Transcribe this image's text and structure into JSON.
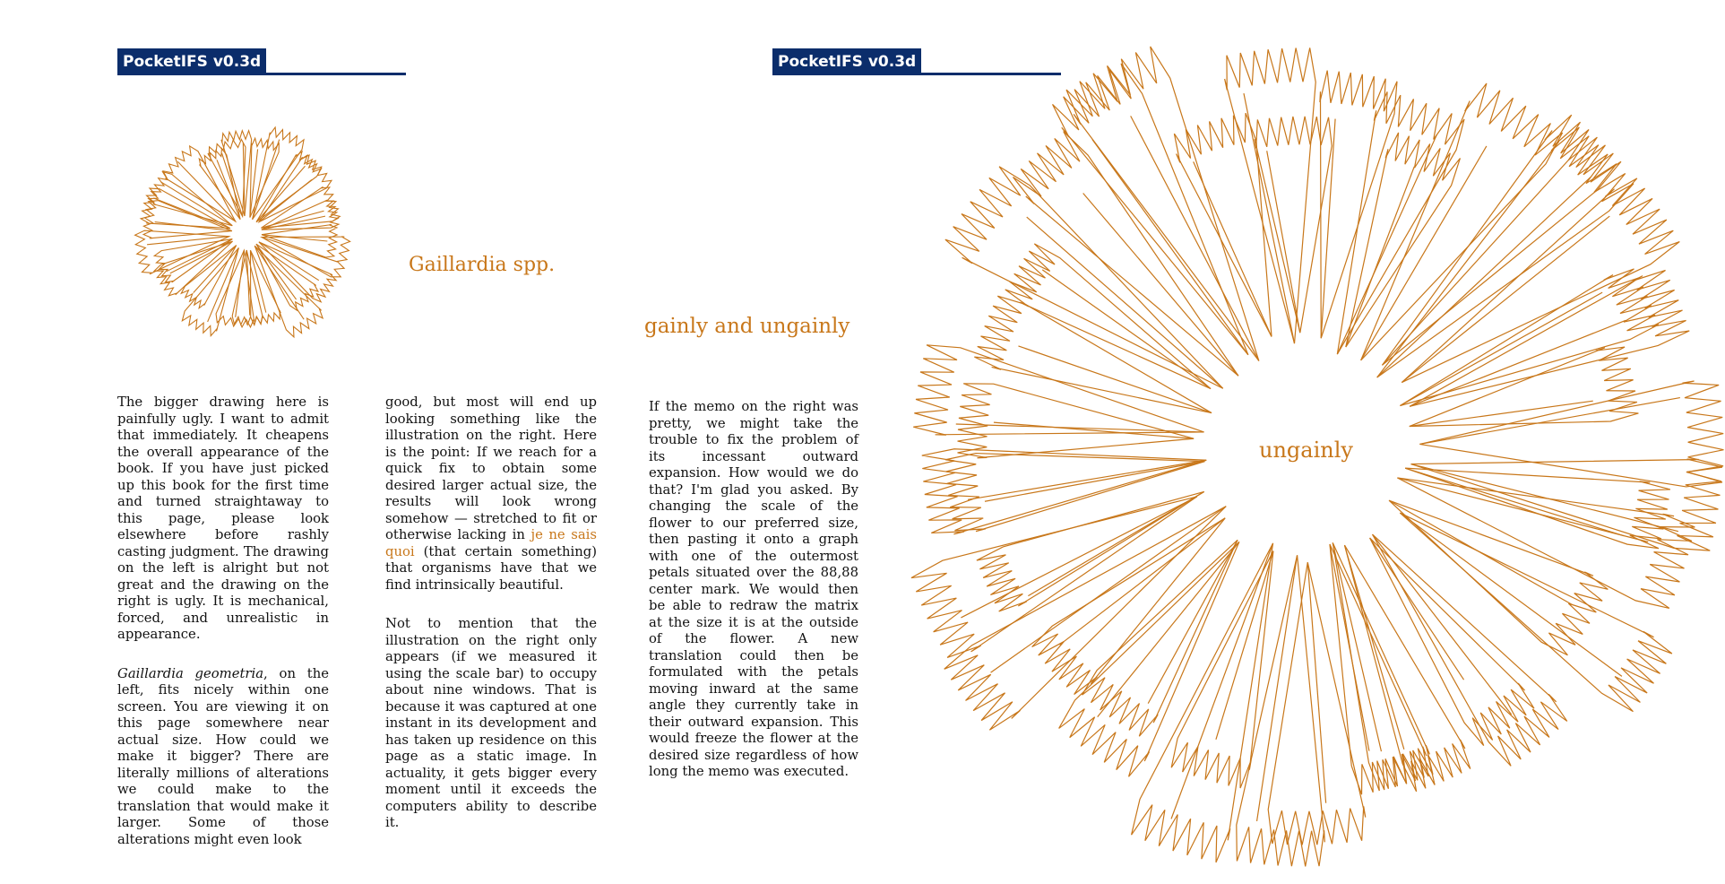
{
  "left_page": {
    "header": "PocketIFS v0.3d",
    "flower_caption": "Gaillardia spp.",
    "col1": {
      "p1": "The bigger drawing here is painfully ugly. I want to admit that immediately. It cheapens the overall appearance of the book. If you have just picked up this book for the first time and turned straightaway to this page, please look elsewhere before rashly casting judgment. The drawing on the left is alright but not great and the drawing on the right is ugly. It is mechanical, forced, and unrealistic in appearance.",
      "p2_italic": "Gaillardia geometria",
      "p2_rest": ", on the left, fits nicely within one screen. You are viewing it on this page somewhere near actual size. How could we make it bigger? There are literally millions of alterations we could make to the translation that would make it larger. Some of those alterations might even look"
    },
    "col2": {
      "p1_before": "good, but most will end up looking something like the illustration on the right. Here is the point: If we reach for a quick fix to obtain some desired larger actual size, the results will look wrong somehow — stretched to fit or otherwise lacking in ",
      "p1_highlight": "je ne sais quoi",
      "p1_after": " (that certain something) that organisms have that we find intrinsically beautiful.",
      "p2": "Not to mention that the illustration on the right only appears (if we measured it using the scale bar) to occupy about nine windows. That is because it was captured at one instant in its development and has taken up residence on this page as a static image. In actuality, it gets bigger every moment until it exceeds the computers ability to describe it."
    }
  },
  "right_page": {
    "header": "PocketIFS v0.3d",
    "heading": "gainly and ungainly",
    "col1": "If the memo on the right was pretty, we might take the trouble to fix the problem of its incessant outward expansion. How would we do that? I'm glad you asked. By changing the scale of the flower to our preferred size, then pasting it onto a graph with one of the outermost petals situated over the 88,88 center mark. We would then be able to redraw the matrix at the size it is at the outside of the flower. A new translation could then be formulated with the petals moving inward at the same angle they currently take in their outward expansion. This would freeze the flower at the desired size regardless of how long the memo was executed.",
    "flower_label": "ungainly"
  },
  "colors": {
    "header_bg": "#0b2d6b",
    "orange": "#c8771a",
    "text": "#111111"
  }
}
